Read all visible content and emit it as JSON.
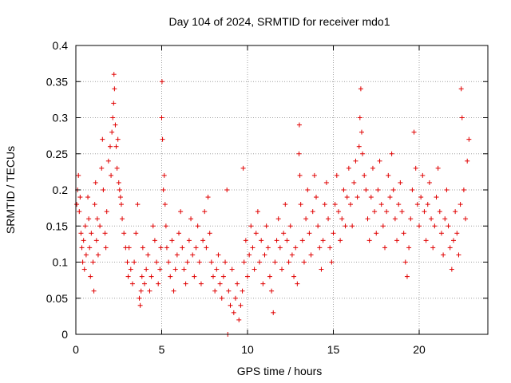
{
  "chart_data": {
    "type": "scatter",
    "title": "Day 104 of 2024, SRMTID for receiver mdo1",
    "xlabel": "GPS time / hours",
    "ylabel": "SRMTID / TECUs",
    "xlim": [
      0,
      24
    ],
    "ylim": [
      0,
      0.4
    ],
    "xticks": [
      0,
      5,
      10,
      15,
      20
    ],
    "xtick_labels": [
      "0",
      "5",
      "10",
      "15",
      "20"
    ],
    "yticks": [
      0,
      0.05,
      0.1,
      0.15,
      0.2,
      0.25,
      0.3,
      0.35,
      0.4
    ],
    "ytick_labels": [
      "0",
      "0.05",
      "0.1",
      "0.15",
      "0.2",
      "0.25",
      "0.3",
      "0.35",
      "0.4"
    ],
    "grid": true,
    "marker": "plus",
    "color": "#e00000",
    "series": [
      {
        "name": "SRMTID",
        "points": [
          [
            0.05,
            0.18
          ],
          [
            0.1,
            0.2
          ],
          [
            0.15,
            0.22
          ],
          [
            0.2,
            0.17
          ],
          [
            0.25,
            0.19
          ],
          [
            0.3,
            0.14
          ],
          [
            0.35,
            0.12
          ],
          [
            0.4,
            0.1
          ],
          [
            0.45,
            0.13
          ],
          [
            0.5,
            0.09
          ],
          [
            0.55,
            0.15
          ],
          [
            0.6,
            0.11
          ],
          [
            0.7,
            0.19
          ],
          [
            0.75,
            0.16
          ],
          [
            0.8,
            0.12
          ],
          [
            0.85,
            0.08
          ],
          [
            0.9,
            0.14
          ],
          [
            1.0,
            0.1
          ],
          [
            1.05,
            0.06
          ],
          [
            1.1,
            0.18
          ],
          [
            1.15,
            0.21
          ],
          [
            1.2,
            0.13
          ],
          [
            1.25,
            0.16
          ],
          [
            1.3,
            0.11
          ],
          [
            1.4,
            0.15
          ],
          [
            1.5,
            0.23
          ],
          [
            1.55,
            0.27
          ],
          [
            1.6,
            0.2
          ],
          [
            1.7,
            0.14
          ],
          [
            1.75,
            0.12
          ],
          [
            1.8,
            0.17
          ],
          [
            1.9,
            0.24
          ],
          [
            2.0,
            0.26
          ],
          [
            2.05,
            0.22
          ],
          [
            2.1,
            0.28
          ],
          [
            2.15,
            0.3
          ],
          [
            2.2,
            0.32
          ],
          [
            2.22,
            0.36
          ],
          [
            2.25,
            0.34
          ],
          [
            2.3,
            0.29
          ],
          [
            2.35,
            0.26
          ],
          [
            2.4,
            0.23
          ],
          [
            2.45,
            0.27
          ],
          [
            2.5,
            0.21
          ],
          [
            2.55,
            0.2
          ],
          [
            2.6,
            0.19
          ],
          [
            2.65,
            0.18
          ],
          [
            2.7,
            0.16
          ],
          [
            2.8,
            0.14
          ],
          [
            2.9,
            0.12
          ],
          [
            3.0,
            0.1
          ],
          [
            3.05,
            0.08
          ],
          [
            3.1,
            0.12
          ],
          [
            3.2,
            0.09
          ],
          [
            3.3,
            0.07
          ],
          [
            3.4,
            0.1
          ],
          [
            3.5,
            0.14
          ],
          [
            3.6,
            0.18
          ],
          [
            3.7,
            0.05
          ],
          [
            3.75,
            0.04
          ],
          [
            3.8,
            0.06
          ],
          [
            3.85,
            0.08
          ],
          [
            3.9,
            0.12
          ],
          [
            4.0,
            0.07
          ],
          [
            4.1,
            0.09
          ],
          [
            4.2,
            0.11
          ],
          [
            4.3,
            0.06
          ],
          [
            4.4,
            0.08
          ],
          [
            4.5,
            0.15
          ],
          [
            4.6,
            0.13
          ],
          [
            4.7,
            0.1
          ],
          [
            4.8,
            0.07
          ],
          [
            4.9,
            0.09
          ],
          [
            4.95,
            0.12
          ],
          [
            5.0,
            0.3
          ],
          [
            5.02,
            0.35
          ],
          [
            5.05,
            0.27
          ],
          [
            5.1,
            0.2
          ],
          [
            5.15,
            0.22
          ],
          [
            5.2,
            0.18
          ],
          [
            5.25,
            0.15
          ],
          [
            5.3,
            0.12
          ],
          [
            5.4,
            0.1
          ],
          [
            5.5,
            0.08
          ],
          [
            5.6,
            0.13
          ],
          [
            5.7,
            0.06
          ],
          [
            5.8,
            0.09
          ],
          [
            5.9,
            0.11
          ],
          [
            6.0,
            0.14
          ],
          [
            6.1,
            0.17
          ],
          [
            6.2,
            0.12
          ],
          [
            6.3,
            0.09
          ],
          [
            6.4,
            0.07
          ],
          [
            6.5,
            0.1
          ],
          [
            6.6,
            0.13
          ],
          [
            6.7,
            0.16
          ],
          [
            6.8,
            0.11
          ],
          [
            6.9,
            0.08
          ],
          [
            7.0,
            0.12
          ],
          [
            7.1,
            0.15
          ],
          [
            7.2,
            0.1
          ],
          [
            7.3,
            0.07
          ],
          [
            7.4,
            0.13
          ],
          [
            7.5,
            0.17
          ],
          [
            7.6,
            0.12
          ],
          [
            7.7,
            0.19
          ],
          [
            7.8,
            0.14
          ],
          [
            7.9,
            0.1
          ],
          [
            8.0,
            0.08
          ],
          [
            8.1,
            0.06
          ],
          [
            8.2,
            0.09
          ],
          [
            8.3,
            0.11
          ],
          [
            8.4,
            0.07
          ],
          [
            8.5,
            0.05
          ],
          [
            8.6,
            0.08
          ],
          [
            8.7,
            0.1
          ],
          [
            8.8,
            0.2
          ],
          [
            8.85,
            0.0
          ],
          [
            8.9,
            0.06
          ],
          [
            9.0,
            0.04
          ],
          [
            9.1,
            0.09
          ],
          [
            9.2,
            0.03
          ],
          [
            9.3,
            0.05
          ],
          [
            9.4,
            0.07
          ],
          [
            9.5,
            0.02
          ],
          [
            9.6,
            0.04
          ],
          [
            9.7,
            0.06
          ],
          [
            9.75,
            0.23
          ],
          [
            9.8,
            0.1
          ],
          [
            9.9,
            0.13
          ],
          [
            10.0,
            0.08
          ],
          [
            10.1,
            0.11
          ],
          [
            10.2,
            0.15
          ],
          [
            10.3,
            0.12
          ],
          [
            10.4,
            0.09
          ],
          [
            10.5,
            0.14
          ],
          [
            10.6,
            0.17
          ],
          [
            10.7,
            0.1
          ],
          [
            10.8,
            0.13
          ],
          [
            10.9,
            0.07
          ],
          [
            11.0,
            0.11
          ],
          [
            11.1,
            0.15
          ],
          [
            11.2,
            0.12
          ],
          [
            11.3,
            0.08
          ],
          [
            11.4,
            0.06
          ],
          [
            11.5,
            0.03
          ],
          [
            11.6,
            0.1
          ],
          [
            11.7,
            0.13
          ],
          [
            11.8,
            0.16
          ],
          [
            11.9,
            0.12
          ],
          [
            12.0,
            0.09
          ],
          [
            12.1,
            0.14
          ],
          [
            12.2,
            0.18
          ],
          [
            12.3,
            0.13
          ],
          [
            12.4,
            0.1
          ],
          [
            12.5,
            0.15
          ],
          [
            12.6,
            0.11
          ],
          [
            12.7,
            0.08
          ],
          [
            12.8,
            0.12
          ],
          [
            12.9,
            0.07
          ],
          [
            13.0,
            0.25
          ],
          [
            13.02,
            0.29
          ],
          [
            13.05,
            0.22
          ],
          [
            13.1,
            0.18
          ],
          [
            13.2,
            0.13
          ],
          [
            13.3,
            0.1
          ],
          [
            13.4,
            0.16
          ],
          [
            13.5,
            0.2
          ],
          [
            13.6,
            0.14
          ],
          [
            13.7,
            0.11
          ],
          [
            13.8,
            0.17
          ],
          [
            13.9,
            0.22
          ],
          [
            14.0,
            0.19
          ],
          [
            14.1,
            0.15
          ],
          [
            14.2,
            0.12
          ],
          [
            14.3,
            0.09
          ],
          [
            14.4,
            0.13
          ],
          [
            14.5,
            0.18
          ],
          [
            14.6,
            0.21
          ],
          [
            14.7,
            0.16
          ],
          [
            14.8,
            0.12
          ],
          [
            14.9,
            0.1
          ],
          [
            15.0,
            0.14
          ],
          [
            15.1,
            0.18
          ],
          [
            15.2,
            0.22
          ],
          [
            15.3,
            0.17
          ],
          [
            15.4,
            0.13
          ],
          [
            15.5,
            0.16
          ],
          [
            15.6,
            0.2
          ],
          [
            15.7,
            0.15
          ],
          [
            15.8,
            0.19
          ],
          [
            15.9,
            0.23
          ],
          [
            16.0,
            0.18
          ],
          [
            16.1,
            0.15
          ],
          [
            16.2,
            0.21
          ],
          [
            16.3,
            0.24
          ],
          [
            16.4,
            0.19
          ],
          [
            16.5,
            0.26
          ],
          [
            16.55,
            0.3
          ],
          [
            16.6,
            0.34
          ],
          [
            16.65,
            0.28
          ],
          [
            16.7,
            0.25
          ],
          [
            16.8,
            0.22
          ],
          [
            16.9,
            0.2
          ],
          [
            17.0,
            0.16
          ],
          [
            17.1,
            0.13
          ],
          [
            17.2,
            0.19
          ],
          [
            17.3,
            0.23
          ],
          [
            17.4,
            0.17
          ],
          [
            17.5,
            0.14
          ],
          [
            17.6,
            0.2
          ],
          [
            17.7,
            0.24
          ],
          [
            17.8,
            0.18
          ],
          [
            17.9,
            0.15
          ],
          [
            18.0,
            0.12
          ],
          [
            18.1,
            0.17
          ],
          [
            18.2,
            0.22
          ],
          [
            18.3,
            0.19
          ],
          [
            18.4,
            0.25
          ],
          [
            18.5,
            0.2
          ],
          [
            18.6,
            0.16
          ],
          [
            18.7,
            0.13
          ],
          [
            18.8,
            0.18
          ],
          [
            18.9,
            0.21
          ],
          [
            19.0,
            0.17
          ],
          [
            19.1,
            0.14
          ],
          [
            19.2,
            0.1
          ],
          [
            19.3,
            0.08
          ],
          [
            19.4,
            0.12
          ],
          [
            19.5,
            0.16
          ],
          [
            19.6,
            0.2
          ],
          [
            19.7,
            0.28
          ],
          [
            19.8,
            0.23
          ],
          [
            19.9,
            0.18
          ],
          [
            20.0,
            0.15
          ],
          [
            20.1,
            0.19
          ],
          [
            20.2,
            0.22
          ],
          [
            20.3,
            0.17
          ],
          [
            20.4,
            0.13
          ],
          [
            20.5,
            0.18
          ],
          [
            20.6,
            0.21
          ],
          [
            20.7,
            0.16
          ],
          [
            20.8,
            0.12
          ],
          [
            20.9,
            0.15
          ],
          [
            21.0,
            0.19
          ],
          [
            21.1,
            0.23
          ],
          [
            21.2,
            0.17
          ],
          [
            21.3,
            0.14
          ],
          [
            21.4,
            0.11
          ],
          [
            21.5,
            0.16
          ],
          [
            21.6,
            0.2
          ],
          [
            21.7,
            0.15
          ],
          [
            21.8,
            0.12
          ],
          [
            21.9,
            0.09
          ],
          [
            22.0,
            0.13
          ],
          [
            22.1,
            0.17
          ],
          [
            22.2,
            0.14
          ],
          [
            22.3,
            0.11
          ],
          [
            22.4,
            0.18
          ],
          [
            22.45,
            0.34
          ],
          [
            22.5,
            0.3
          ],
          [
            22.6,
            0.2
          ],
          [
            22.7,
            0.16
          ],
          [
            22.8,
            0.24
          ],
          [
            22.9,
            0.27
          ]
        ]
      }
    ]
  }
}
